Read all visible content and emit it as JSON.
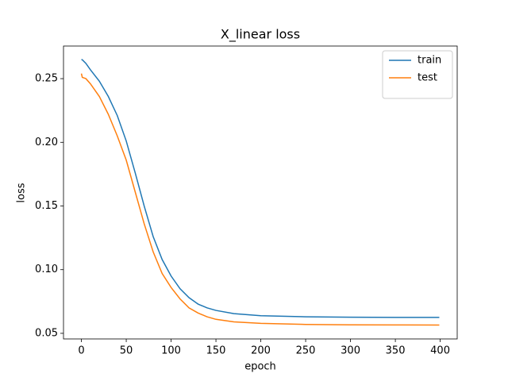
{
  "chart_data": {
    "type": "line",
    "title": "X_linear loss",
    "x_label": "epoch",
    "y_label": "loss",
    "x": [
      0,
      1,
      5,
      10,
      20,
      30,
      40,
      50,
      60,
      70,
      80,
      90,
      100,
      110,
      120,
      130,
      140,
      150,
      170,
      200,
      250,
      300,
      350,
      399
    ],
    "series": [
      {
        "name": "train",
        "color": "#1f77b4",
        "values": [
          0.265,
          0.2648,
          0.262,
          0.257,
          0.248,
          0.236,
          0.221,
          0.201,
          0.176,
          0.15,
          0.126,
          0.108,
          0.095,
          0.085,
          0.078,
          0.073,
          0.07,
          0.068,
          0.0655,
          0.0638,
          0.063,
          0.0627,
          0.0625,
          0.0625
        ]
      },
      {
        "name": "test",
        "color": "#ff7f0e",
        "values": [
          0.254,
          0.251,
          0.25,
          0.246,
          0.236,
          0.222,
          0.205,
          0.186,
          0.161,
          0.136,
          0.114,
          0.097,
          0.086,
          0.077,
          0.07,
          0.066,
          0.063,
          0.061,
          0.059,
          0.0578,
          0.057,
          0.0567,
          0.0566,
          0.0565
        ]
      }
    ],
    "xlim": [
      -19.95,
      418.95
    ],
    "xticks": [
      0,
      50,
      100,
      150,
      200,
      250,
      300,
      350,
      400
    ],
    "ylim": [
      0.0456,
      0.2756
    ],
    "yticks": [
      {
        "value": 0.05,
        "label": "0.05"
      },
      {
        "value": 0.1,
        "label": "0.10"
      },
      {
        "value": 0.15,
        "label": "0.15"
      },
      {
        "value": 0.2,
        "label": "0.20"
      },
      {
        "value": 0.25,
        "label": "0.25"
      }
    ],
    "legend": "upper right",
    "grid": false
  }
}
